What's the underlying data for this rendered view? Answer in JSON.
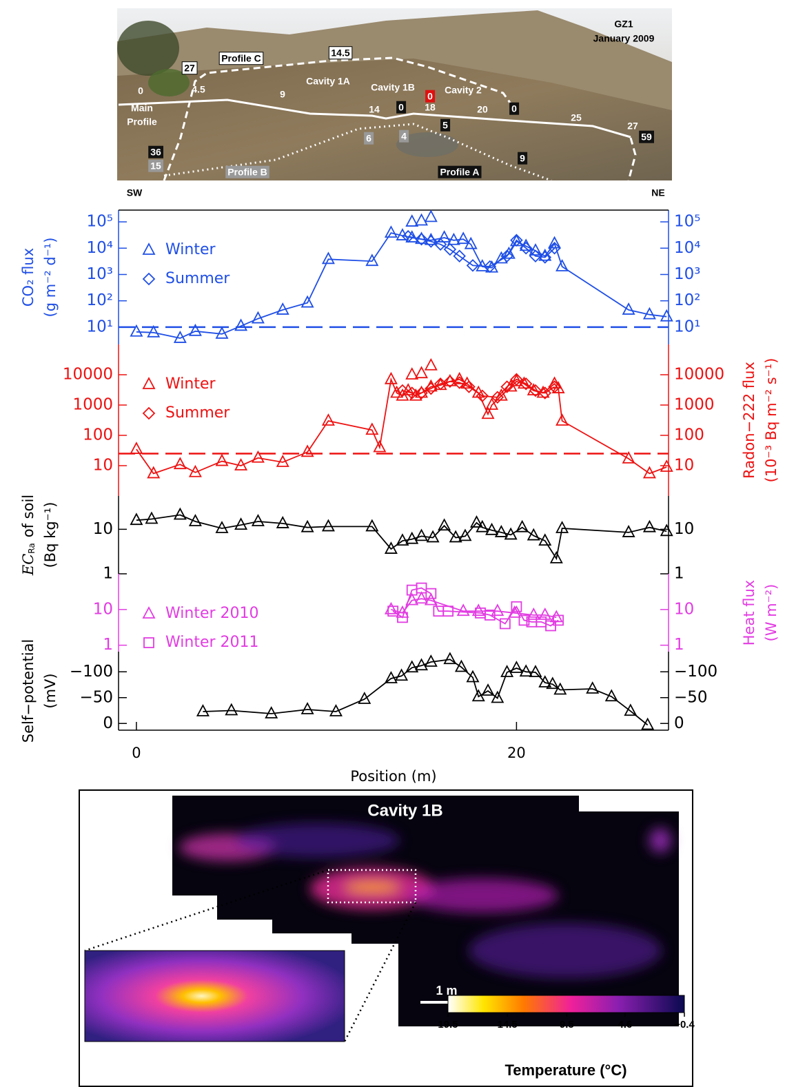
{
  "photo": {
    "labels": [
      "GZ1",
      "January 2009",
      "Profile C",
      "14.5",
      "27",
      "0",
      "Main",
      "Profile",
      "4.5",
      "9",
      "Cavity 1A",
      "Cavity 1B",
      "0",
      "Cavity 2",
      "14",
      "0",
      "18",
      "20",
      "0",
      "25",
      "27",
      "59",
      "5",
      "6",
      "4",
      "9",
      "36",
      "15",
      "Profile B",
      "Profile A"
    ],
    "left": "SW",
    "right": "NE"
  },
  "chart_data": [
    {
      "type": "line",
      "log": true,
      "color": "#1f4fe6",
      "ylabel": [
        "CO₂ flux",
        "(g m⁻² d⁻¹)"
      ],
      "ylabel_side": "left",
      "xlim": [
        -0.94,
        28.0
      ],
      "ylim": [
        2.2,
        280000
      ],
      "yticks": [
        {
          "value": 10,
          "label": "10¹"
        },
        {
          "value": 100,
          "label": "10²"
        },
        {
          "value": 1000,
          "label": "10³"
        },
        {
          "value": 10000,
          "label": "10⁴"
        },
        {
          "value": 100000,
          "label": "10⁵"
        }
      ],
      "reference": 10,
      "series": [
        {
          "name": "Winter",
          "marker": "triangle",
          "line": true,
          "x": [
            0,
            0.9,
            2.3,
            3.1,
            4.5,
            5.5,
            6.4,
            7.7,
            9.0,
            10.1,
            12.4,
            13.4,
            14.0,
            14.5,
            15.0,
            15.5,
            16.2,
            16.7,
            17.2,
            17.6,
            18.2,
            18.7,
            19.2,
            19.6,
            20.0,
            20.5,
            21.0,
            21.5,
            22.0,
            22.4,
            25.9,
            27.0,
            27.9
          ],
          "values": [
            6.6,
            6.2,
            3.8,
            7,
            5.5,
            11,
            21,
            45,
            84,
            3800,
            3200,
            38000,
            30000,
            25000,
            22000,
            20000,
            25000,
            20000,
            22000,
            14000,
            2000,
            1800,
            4000,
            6000,
            18000,
            12000,
            8000,
            5000,
            15000,
            2000,
            45,
            30,
            25
          ]
        },
        {
          "name": "Summer",
          "marker": "diamond",
          "line": true,
          "x": [
            14.3,
            15.0,
            15.5,
            16.0,
            16.5,
            17.0,
            17.7,
            18.6,
            19.5,
            20.0,
            20.5,
            21.0,
            21.5,
            22.0
          ],
          "values": [
            28000,
            22000,
            18000,
            14000,
            9000,
            5000,
            2200,
            2000,
            5000,
            20000,
            10000,
            5000,
            4500,
            10000
          ]
        },
        {
          "marker": "triangle",
          "line": false,
          "x": [
            14.5,
            15.0,
            15.5
          ],
          "values": [
            100000,
            110000,
            150000
          ]
        }
      ]
    },
    {
      "type": "line",
      "log": true,
      "color": "#ee1111",
      "ylabel": [
        "Radon−222 flux",
        "(10⁻³ Bq m⁻² s⁻¹)"
      ],
      "ylabel_side": "right",
      "xlim": [
        -0.94,
        28.0
      ],
      "ylim": [
        1,
        100000
      ],
      "yticks": [
        10,
        100,
        1000,
        10000
      ],
      "reference": 25,
      "series": [
        {
          "name": "Winter",
          "marker": "triangle",
          "line": true,
          "x": [
            0,
            0.9,
            2.3,
            3.1,
            4.5,
            5.5,
            6.4,
            7.7,
            9.0,
            10.1,
            12.4,
            12.8,
            13.4,
            13.7,
            14.0,
            14.3,
            14.7,
            15.0,
            15.5,
            16.0,
            16.5,
            17.0,
            17.4,
            18.0,
            18.5,
            18.7,
            19.2,
            19.7,
            20.0,
            20.4,
            20.9,
            21.4,
            22.0,
            22.2,
            22.4,
            25.9,
            27.0,
            27.9
          ],
          "values": [
            35,
            5.5,
            11,
            6,
            14,
            10,
            18,
            13,
            28,
            300,
            150,
            40,
            7000,
            2500,
            2000,
            3000,
            2000,
            2500,
            4000,
            4500,
            6000,
            7000,
            5000,
            2500,
            500,
            1000,
            2000,
            4000,
            6000,
            5000,
            3000,
            2500,
            5000,
            3500,
            300,
            17,
            5.5,
            9
          ]
        },
        {
          "name": "Summer",
          "marker": "diamond",
          "line": true,
          "x": [
            14.0,
            14.5,
            15.0,
            15.5,
            16.0,
            16.5,
            17.0,
            17.5,
            18.2,
            19.0,
            19.5,
            20.0,
            20.5,
            21.0,
            21.5,
            22.0
          ],
          "values": [
            3000,
            2500,
            2500,
            3500,
            5000,
            6000,
            5500,
            4000,
            2000,
            1800,
            4000,
            7000,
            5000,
            3000,
            2500,
            4000
          ]
        },
        {
          "marker": "triangle",
          "line": false,
          "x": [
            14.5,
            15.0,
            15.5
          ],
          "values": [
            10000,
            11000,
            20000
          ]
        }
      ]
    },
    {
      "type": "line",
      "log": true,
      "color": "#000000",
      "ylabel_symbol": "EC",
      "ylabel_subscript": "Ra",
      "ylabel": [
        "of soil",
        "(Bq kg⁻¹)"
      ],
      "ylabel_side": "left",
      "xlim": [
        -0.94,
        28.0
      ],
      "ylim": [
        1,
        56
      ],
      "yticks": [
        1,
        10
      ],
      "series": [
        {
          "marker": "triangle",
          "line": true,
          "x": [
            0,
            0.8,
            2.3,
            3.1,
            4.5,
            5.5,
            6.4,
            7.7,
            9.0,
            10.1,
            12.4,
            13.4,
            14.0,
            14.5,
            15.0,
            15.6,
            16.2,
            16.8,
            17.3,
            17.9,
            18.2,
            18.7,
            19.2,
            19.7,
            20.3,
            20.9,
            21.5,
            22.1,
            22.4,
            25.9,
            27.0,
            27.9
          ],
          "values": [
            16,
            17,
            21,
            15,
            10.5,
            12.5,
            15,
            13.5,
            11,
            11.5,
            11.5,
            3.6,
            5.5,
            6,
            7,
            6.5,
            12,
            6.5,
            7,
            14,
            11,
            9.5,
            8.5,
            7.5,
            11,
            7.2,
            5.5,
            2.2,
            10.5,
            8.5,
            11,
            9
          ]
        }
      ]
    },
    {
      "type": "line",
      "log": true,
      "color": "#e23ce2",
      "ylabel": [
        "Heat flux",
        "(W m⁻²)"
      ],
      "ylabel_side": "right",
      "xlim": [
        -0.94,
        28.0
      ],
      "ylim": [
        0.66,
        100
      ],
      "yticks": [
        1,
        10
      ],
      "series": [
        {
          "name": "Winter 2010",
          "marker": "triangle",
          "line": true,
          "x": [
            13.4,
            14.0,
            14.5,
            15.0,
            15.5,
            17.2,
            18.0,
            19.0,
            19.9,
            20.9,
            21.5,
            22.1
          ],
          "values": [
            10,
            8,
            18,
            20,
            18,
            9,
            9,
            9,
            8,
            7,
            7,
            6
          ]
        },
        {
          "name": "Winter 2011",
          "marker": "square",
          "line": true,
          "x": [
            13.5,
            14.0,
            14.5,
            15.0,
            15.5,
            15.9,
            16.4,
            18.1,
            18.6,
            19.4,
            20.0,
            20.4,
            20.8,
            21.3,
            21.8,
            22.2
          ],
          "values": [
            9,
            6,
            35,
            40,
            28,
            9,
            9,
            8,
            7,
            4,
            12,
            5,
            4.5,
            4.5,
            3.5,
            5
          ]
        }
      ]
    },
    {
      "type": "line",
      "log": false,
      "color": "#000000",
      "ylabel": [
        "Self−potential",
        "(mV)"
      ],
      "ylabel_side": "left",
      "xlim": [
        -0.94,
        28.0
      ],
      "ylim": [
        13,
        -139
      ],
      "yticks": [
        {
          "value": -100,
          "label": "−100"
        },
        {
          "value": -50,
          "label": "−50"
        },
        0
      ],
      "xticks": [
        0,
        20
      ],
      "xlabel": "Position (m)",
      "series": [
        {
          "marker": "triangle",
          "line": true,
          "x": [
            3.5,
            5.0,
            7.1,
            9.0,
            10.5,
            12.0,
            13.4,
            13.95,
            14.5,
            15.0,
            15.5,
            16.5,
            17.1,
            17.7,
            18.0,
            18.5,
            19.0,
            19.5,
            20.0,
            20.5,
            21.0,
            21.5,
            21.9,
            22.3,
            24.0,
            25.0,
            26.0,
            26.9
          ],
          "values": [
            -23,
            -25,
            -19,
            -27,
            -23,
            -47,
            -87,
            -92,
            -108,
            -112,
            -119,
            -124,
            -109,
            -89,
            -52,
            -63,
            -49,
            -99,
            -107,
            -100,
            -99,
            -79,
            -76,
            -65,
            -67,
            -52,
            -24,
            3
          ]
        }
      ]
    }
  ],
  "thermal": {
    "title": "Cavity 1B",
    "scale_label": "1 m",
    "colorbar": {
      "ticks": [
        19.5,
        14.5,
        9.5,
        4.6,
        {
          "value": -0.4,
          "label": "−0.4"
        }
      ],
      "label": "Temperature (°C)"
    }
  }
}
